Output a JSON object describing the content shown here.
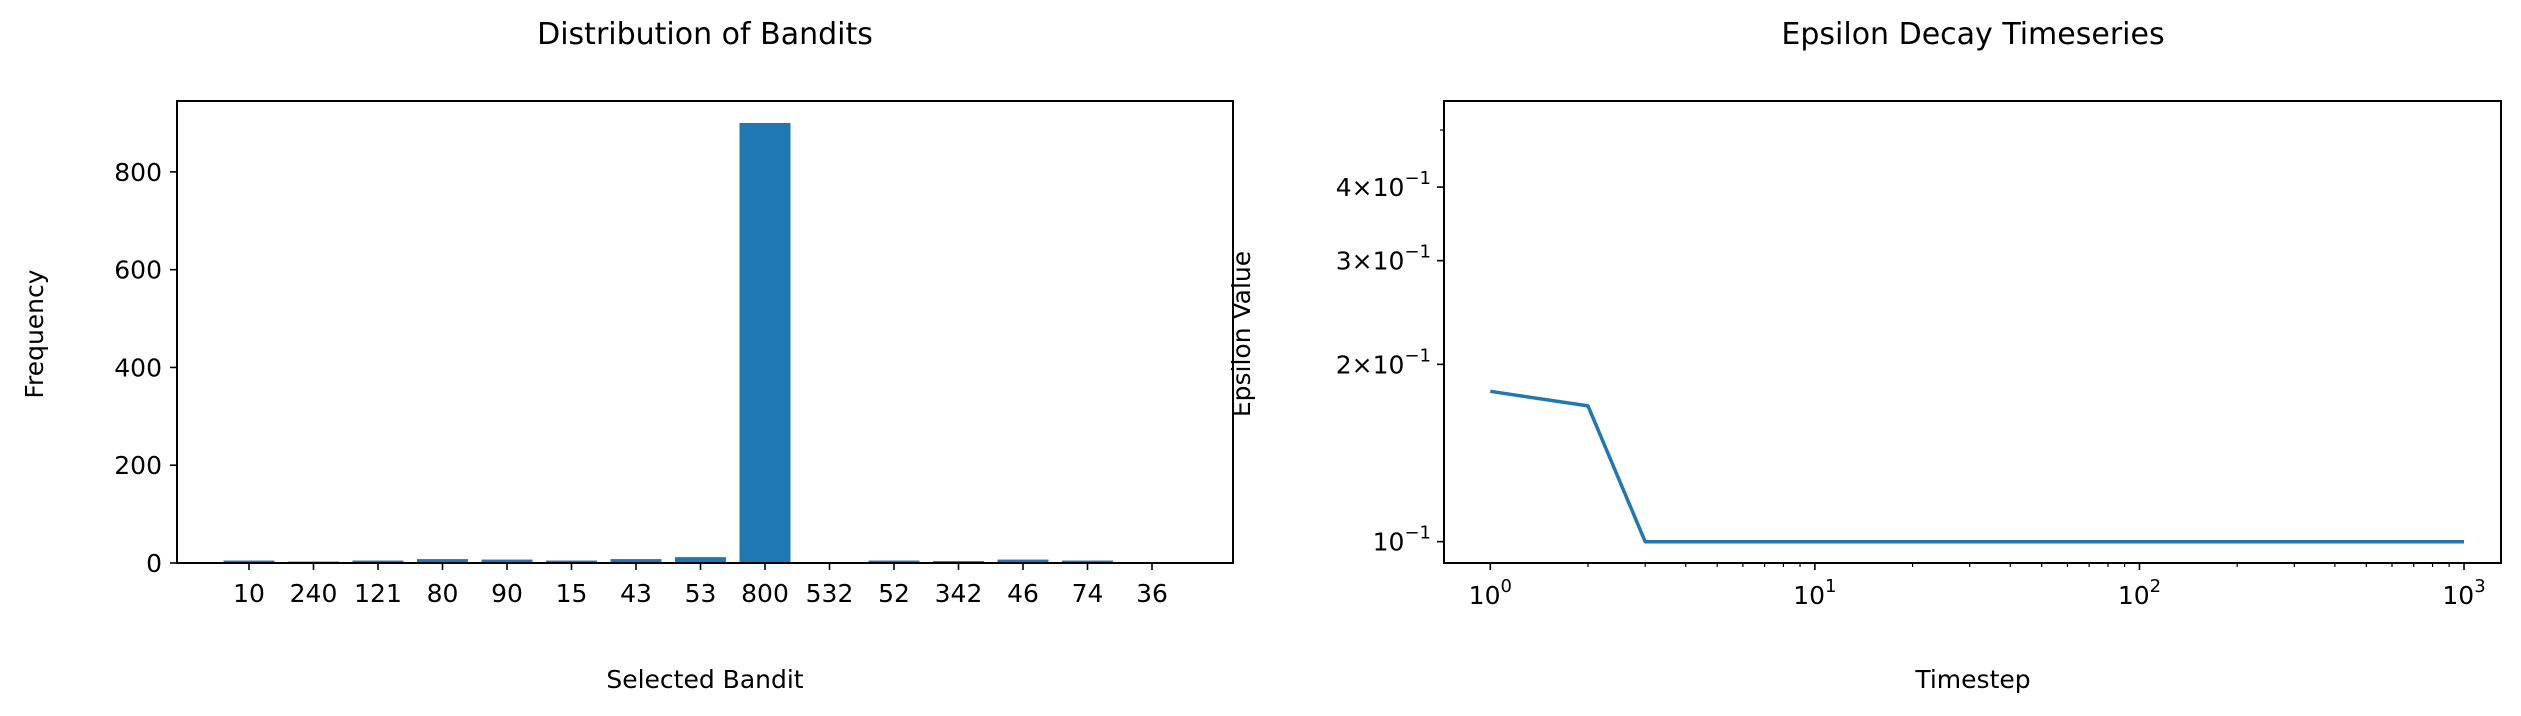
{
  "chart_data": [
    {
      "type": "bar",
      "title": "Distribution of Bandits",
      "xlabel": "Selected Bandit",
      "ylabel": "Frequency",
      "categories": [
        "10",
        "240",
        "121",
        "80",
        "90",
        "15",
        "43",
        "53",
        "800",
        "532",
        "52",
        "342",
        "46",
        "74",
        "36"
      ],
      "values": [
        5,
        3,
        5,
        8,
        7,
        5,
        8,
        12,
        900,
        2,
        5,
        4,
        7,
        5,
        2
      ],
      "ylim": [
        0,
        945
      ],
      "yticks": [
        "0",
        "200",
        "400",
        "600",
        "800"
      ],
      "color": "#1f77b4",
      "grid": false
    },
    {
      "type": "line",
      "title": "Epsilon Decay Timeseries",
      "xlabel": "Timestep",
      "ylabel": "Epsilon Value",
      "xscale": "log",
      "yscale": "log",
      "x": [
        1,
        2,
        3,
        1000
      ],
      "y": [
        0.18,
        0.17,
        0.1,
        0.1
      ],
      "xlim": [
        0.72,
        1300
      ],
      "ylim": [
        0.092,
        0.56
      ],
      "xticks": [
        "10^0",
        "10^1",
        "10^2",
        "10^3"
      ],
      "yticks": [
        "10^-1",
        "2×10^-1",
        "3×10^-1",
        "4×10^-1"
      ],
      "color": "#1f77b4",
      "grid": false
    }
  ]
}
